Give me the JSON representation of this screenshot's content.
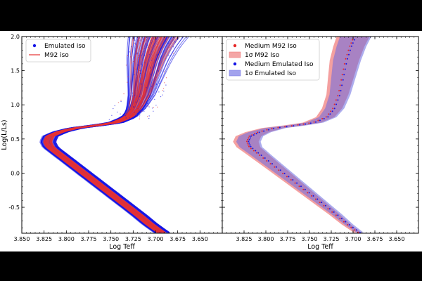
{
  "chart_data": [
    {
      "type": "line",
      "panel": "left",
      "title": "",
      "xlabel": "Log Teff",
      "ylabel": "Log(L/Ls)",
      "xlim": [
        3.85,
        3.625
      ],
      "ylim": [
        -0.88,
        2.0
      ],
      "x_ticks": [
        "3.850",
        "3.825",
        "3.800",
        "3.775",
        "3.750",
        "3.725",
        "3.700",
        "3.675",
        "3.650"
      ],
      "y_ticks": [
        "-0.5",
        "0.0",
        "0.5",
        "1.0",
        "1.5",
        "2.0"
      ],
      "legend_position": "top-left",
      "series": [
        {
          "name": "Emulated iso",
          "style": "dots",
          "color": "#1414e6"
        },
        {
          "name": "M92 iso",
          "style": "line",
          "color": "#e63232"
        }
      ],
      "median_track": {
        "x": [
          3.693,
          3.706,
          3.72,
          3.735,
          3.75,
          3.765,
          3.78,
          3.795,
          3.808,
          3.818,
          3.821,
          3.818,
          3.808,
          3.79,
          3.765,
          3.745,
          3.73,
          3.722,
          3.716,
          3.712,
          3.708,
          3.703,
          3.698
        ],
        "y": [
          -0.87,
          -0.75,
          -0.6,
          -0.45,
          -0.3,
          -0.15,
          0.0,
          0.15,
          0.28,
          0.38,
          0.46,
          0.54,
          0.6,
          0.66,
          0.7,
          0.74,
          0.82,
          0.95,
          1.15,
          1.4,
          1.65,
          1.85,
          2.0
        ]
      }
    },
    {
      "type": "line",
      "panel": "right",
      "title": "",
      "xlabel": "Log Teff",
      "ylabel": "",
      "xlim": [
        3.85,
        3.625
      ],
      "ylim": [
        -0.88,
        2.0
      ],
      "x_ticks": [
        "3.825",
        "3.800",
        "3.775",
        "3.750",
        "3.725",
        "3.700",
        "3.675",
        "3.650"
      ],
      "legend_position": "top-left",
      "series": [
        {
          "name": "Medium M92 Iso",
          "style": "dots",
          "color": "#e62828"
        },
        {
          "name": "1σ M92 Iso",
          "style": "band",
          "color": "#f08080"
        },
        {
          "name": "Medium Emulated Iso",
          "style": "dots",
          "color": "#1414e6"
        },
        {
          "name": "1σ Emulated Iso",
          "style": "band",
          "color": "#7a7ae6"
        }
      ],
      "median_track": {
        "x": [
          3.693,
          3.706,
          3.72,
          3.735,
          3.75,
          3.765,
          3.78,
          3.795,
          3.808,
          3.818,
          3.821,
          3.818,
          3.808,
          3.79,
          3.765,
          3.745,
          3.73,
          3.722,
          3.716,
          3.712,
          3.708,
          3.703,
          3.698
        ],
        "y": [
          -0.87,
          -0.75,
          -0.6,
          -0.45,
          -0.3,
          -0.15,
          0.0,
          0.15,
          0.28,
          0.38,
          0.46,
          0.54,
          0.6,
          0.66,
          0.7,
          0.74,
          0.82,
          0.95,
          1.15,
          1.4,
          1.65,
          1.85,
          2.0
        ]
      },
      "band_half_width_teff": [
        0.004,
        0.005,
        0.006,
        0.007,
        0.008,
        0.009,
        0.01,
        0.011,
        0.012,
        0.013,
        0.014,
        0.014,
        0.013,
        0.012,
        0.011,
        0.01,
        0.01,
        0.011,
        0.012,
        0.014,
        0.016,
        0.017,
        0.018
      ]
    }
  ]
}
